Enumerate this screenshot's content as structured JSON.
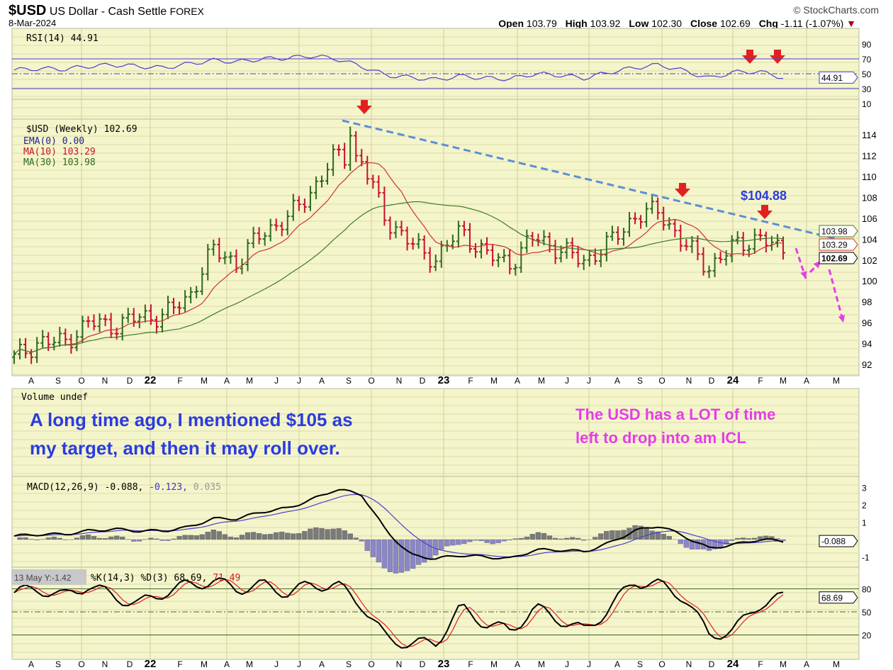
{
  "header": {
    "symbol": "$USD",
    "name": "US Dollar - Cash Settle",
    "exchange": "FOREX",
    "date": "8-Mar-2024",
    "brand": "© StockCharts.com",
    "open_label": "Open",
    "open": "103.79",
    "high_label": "High",
    "high": "103.92",
    "low_label": "Low",
    "low": "102.30",
    "close_label": "Close",
    "close": "102.69",
    "chg_label": "Chg",
    "chg": "-1.11 (-1.07%)"
  },
  "legends": {
    "rsi": "RSI(14) 44.91",
    "price": "$USD (Weekly) 102.69",
    "ema": "EMA(0) 0.00",
    "ma10": "MA(10) 103.29",
    "ma30": "MA(30) 103.98",
    "volume": "Volume undef",
    "macd_a": "MACD(12,26,9) -0.088,",
    "macd_b": " -0.123,",
    "macd_c": " 0.035",
    "stoch": "%K(14,3) %D(3) 68.69,",
    "stoch_b": " 71.49",
    "tooltip": "13 May Y:-1.42"
  },
  "tags": {
    "rsi": "44.91",
    "ma30": "103.98",
    "ma10": "103.29",
    "price": "102.69",
    "macd": "-0.088",
    "stoch": "68.69"
  },
  "annotations": {
    "target_price": "$104.88",
    "note_left_1": "A long time ago, I mentioned $105 as",
    "note_left_2": "my target, and then it may roll over.",
    "note_right_1": "The USD has a LOT of time",
    "note_right_2": "left to drop into am ICL"
  },
  "colors": {
    "panel": "#f5f5cb",
    "grid": "#dcdcac",
    "up": "#2f6a1f",
    "down": "#c8102e",
    "ma10": "#d03030",
    "ma30": "#3f7a2a",
    "rsi": "#4b3fd0",
    "trend": "#5b8fd6",
    "arrow": "#e32020",
    "magenta": "#e53de8",
    "blue_text": "#2a3ce0"
  },
  "chart_data": {
    "type": "ohlc",
    "title": "$USD US Dollar - Cash Settle (Weekly)",
    "x_labels": [
      "A",
      "S",
      "O",
      "N",
      "D",
      "22",
      "F",
      "M",
      "A",
      "M",
      "J",
      "J",
      "A",
      "S",
      "O",
      "N",
      "D",
      "23",
      "F",
      "M",
      "A",
      "M",
      "J",
      "J",
      "A",
      "S",
      "O",
      "N",
      "D",
      "24",
      "F",
      "M",
      "A",
      "M"
    ],
    "price_ticks": [
      92,
      94,
      96,
      98,
      100,
      102,
      104,
      106,
      108,
      110,
      112,
      114
    ],
    "price_ylim": [
      91,
      116
    ],
    "monthly_close": [
      92.6,
      94.2,
      94.1,
      96.0,
      95.7,
      96.5,
      96.7,
      98.3,
      103.0,
      101.7,
      104.7,
      105.9,
      108.7,
      112.1,
      111.5,
      105.9,
      103.5,
      102.1,
      104.9,
      102.5,
      101.7,
      104.3,
      102.9,
      101.9,
      103.6,
      106.2,
      106.7,
      103.5,
      101.3,
      103.3,
      104.2,
      102.69
    ],
    "peak": 114.78,
    "rsi": {
      "ticks": [
        10,
        30,
        50,
        70,
        90
      ],
      "monthly": [
        55,
        57,
        56,
        60,
        62,
        60,
        58,
        63,
        68,
        66,
        70,
        71,
        74,
        70,
        60,
        48,
        45,
        42,
        47,
        44,
        43,
        50,
        48,
        44,
        52,
        58,
        62,
        54,
        44,
        52,
        53,
        44.91
      ]
    },
    "macd": {
      "ticks": [
        -1,
        1,
        2,
        3
      ],
      "monthly": [
        0.2,
        0.3,
        0.3,
        0.5,
        0.6,
        0.5,
        0.5,
        0.7,
        1.2,
        1.2,
        1.6,
        1.8,
        2.3,
        2.9,
        2.6,
        0.5,
        -0.9,
        -1.1,
        -0.9,
        -1.0,
        -1.1,
        -0.6,
        -0.6,
        -0.7,
        -0.2,
        0.5,
        0.8,
        0.2,
        -0.5,
        -0.3,
        0.0,
        -0.088
      ]
    },
    "stoch": {
      "ticks": [
        20,
        50,
        80
      ],
      "monthly": [
        75,
        80,
        70,
        85,
        70,
        60,
        75,
        85,
        90,
        80,
        85,
        75,
        85,
        85,
        60,
        15,
        8,
        10,
        55,
        35,
        25,
        55,
        40,
        25,
        55,
        90,
        85,
        70,
        20,
        25,
        60,
        68.69
      ]
    }
  }
}
